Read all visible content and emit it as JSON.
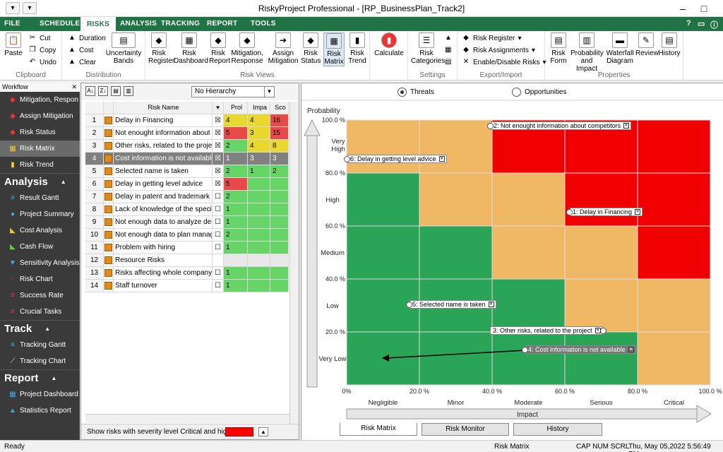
{
  "window": {
    "title": "RiskyProject Professional - [RP_BusinessPlan_Track2]"
  },
  "ribbon_tabs": [
    {
      "label": "FILE"
    },
    {
      "label": "SCHEDULE"
    },
    {
      "label": "RISKS"
    },
    {
      "label": "ANALYSIS"
    },
    {
      "label": "TRACKING"
    },
    {
      "label": "REPORT"
    },
    {
      "label": "TOOLS"
    }
  ],
  "ribbon": {
    "clipboard": {
      "paste": "Paste",
      "cut": "Cut",
      "copy": "Copy",
      "undo": "Undo",
      "label": "Clipboard"
    },
    "distribution": {
      "duration": "Duration",
      "cost": "Cost",
      "clear": "Clear",
      "bands": "Uncertainty Bands",
      "label": "Distribution"
    },
    "risk_views": {
      "label": "Risk Views",
      "buttons": [
        {
          "label": "Risk Register"
        },
        {
          "label": "Risk Dashboard"
        },
        {
          "label": "Risk Report"
        },
        {
          "label": "Mitigation, Response"
        },
        {
          "label": "Assign Mitigation"
        },
        {
          "label": "Risk Status"
        },
        {
          "label": "Risk Matrix"
        },
        {
          "label": "Risk Trend"
        }
      ]
    },
    "calculate": "Calculate",
    "settings": {
      "categories": "Risk Categories",
      "label": "Settings"
    },
    "export_import": {
      "label": "Export/Import",
      "risk_register": "Risk Register",
      "risk_assignments": "Risk Assignments",
      "enable_disable": "Enable/Disable Risks"
    },
    "properties": {
      "label": "Properties",
      "buttons": [
        {
          "label": "Risk Form"
        },
        {
          "label": "Probability and Impact"
        },
        {
          "label": "Waterfall Diagram"
        },
        {
          "label": "Review"
        },
        {
          "label": "History"
        }
      ]
    }
  },
  "sidebar": {
    "header": "Workflow",
    "workflow_items": [
      {
        "label": "Mitigation, Respon"
      },
      {
        "label": "Assign Mitigation"
      },
      {
        "label": "Risk Status"
      },
      {
        "label": "Risk Matrix"
      },
      {
        "label": "Risk Trend"
      }
    ],
    "sections": [
      {
        "title": "Analysis",
        "items": [
          {
            "label": "Result Gantt"
          },
          {
            "label": "Project Summary"
          },
          {
            "label": "Cost Analysis"
          },
          {
            "label": "Cash Flow"
          },
          {
            "label": "Sensitivity Analysis"
          },
          {
            "label": "Risk Chart"
          },
          {
            "label": "Success Rate"
          },
          {
            "label": "Crucial Tasks"
          }
        ]
      },
      {
        "title": "Track",
        "items": [
          {
            "label": "Tracking Gantt"
          },
          {
            "label": "Tracking Chart"
          }
        ]
      },
      {
        "title": "Report",
        "items": [
          {
            "label": "Project Dashboard"
          },
          {
            "label": "Statistics Report"
          }
        ]
      }
    ]
  },
  "risk_list": {
    "hierarchy": "No Hierarchy",
    "columns": {
      "name": "Risk Name",
      "prob": "Prol",
      "impact": "Impa",
      "score": "Sco"
    },
    "rows": [
      {
        "n": "1",
        "name": "Delay in Financing",
        "prob": "4",
        "impact": "4",
        "score": "16",
        "pc": "#e8d830",
        "ic": "#e8d830",
        "sc": "#e84a4a",
        "checked": true
      },
      {
        "n": "2",
        "name": "Not enought information about com",
        "prob": "5",
        "impact": "3",
        "score": "15",
        "pc": "#e84a4a",
        "ic": "#e8d830",
        "sc": "#e84a4a",
        "checked": true
      },
      {
        "n": "3",
        "name": "Other risks, related to the project",
        "prob": "2",
        "impact": "4",
        "score": "8",
        "pc": "#66d466",
        "ic": "#e8d830",
        "sc": "#e8d830",
        "checked": true
      },
      {
        "n": "4",
        "name": "Cost information is not available",
        "prob": "1",
        "impact": "3",
        "score": "3",
        "pc": "#808080",
        "ic": "#808080",
        "sc": "#808080",
        "checked": true
      },
      {
        "n": "5",
        "name": "Selected name is taken",
        "prob": "2",
        "impact": "1",
        "score": "2",
        "pc": "#66d466",
        "ic": "#66d466",
        "sc": "#66d466",
        "checked": true
      },
      {
        "n": "6",
        "name": "Delay in getting level advice",
        "prob": "5",
        "impact": "",
        "score": "",
        "pc": "#e84a4a",
        "ic": "#66d466",
        "sc": "#66d466",
        "checked": true
      },
      {
        "n": "7",
        "name": "Delay in patent and trademark sea",
        "prob": "2",
        "impact": "",
        "score": "",
        "pc": "#66d466",
        "ic": "#66d466",
        "sc": "#66d466",
        "checked": false
      },
      {
        "n": "8",
        "name": "Lack of knowledge of the specific",
        "prob": "1",
        "impact": "",
        "score": "",
        "pc": "#66d466",
        "ic": "#66d466",
        "sc": "#66d466",
        "checked": false
      },
      {
        "n": "9",
        "name": "Not enough data to analyze demar",
        "prob": "1",
        "impact": "",
        "score": "",
        "pc": "#66d466",
        "ic": "#66d466",
        "sc": "#66d466",
        "checked": false
      },
      {
        "n": "10",
        "name": "Not enough data to plan managem",
        "prob": "2",
        "impact": "",
        "score": "",
        "pc": "#66d466",
        "ic": "#66d466",
        "sc": "#66d466",
        "checked": false
      },
      {
        "n": "11",
        "name": "Problem with hiring",
        "prob": "1",
        "impact": "",
        "score": "",
        "pc": "#66d466",
        "ic": "#66d466",
        "sc": "#66d466",
        "checked": false
      },
      {
        "n": "12",
        "name": "Resource Risks",
        "prob": "",
        "impact": "",
        "score": "",
        "pc": "#e8e8e8",
        "ic": "#e8e8e8",
        "sc": "#e8e8e8",
        "checked": null
      },
      {
        "n": "13",
        "name": "Risks affecting whole company/div",
        "prob": "1",
        "impact": "",
        "score": "",
        "pc": "#66d466",
        "ic": "#66d466",
        "sc": "#66d466",
        "checked": false
      },
      {
        "n": "14",
        "name": "Staff turnover",
        "prob": "1",
        "impact": "",
        "score": "",
        "pc": "#66d466",
        "ic": "#66d466",
        "sc": "#66d466",
        "checked": false
      }
    ],
    "footer": "Show risks with severity level Critical and higher"
  },
  "matrix": {
    "threats": "Threats",
    "opportunities": "Opportunities",
    "y_title": "Probability",
    "x_title": "Impact",
    "y_ticks": [
      "100.0 %",
      "80.0 %",
      "60.0 %",
      "40.0 %",
      "20.0 %"
    ],
    "x_ticks": [
      "0%",
      "20.0 %",
      "40.0 %",
      "60.0 %",
      "80.0 %",
      "100.0 %"
    ],
    "row_labels": [
      "Very High",
      "High",
      "Medium",
      "Low",
      "Very Low"
    ],
    "col_labels": [
      "Negligible",
      "Minor",
      "Moderate",
      "Serious",
      "Critical"
    ],
    "cell_colors": [
      [
        "#f0b765",
        "#f0b765",
        "#f00000",
        "#f00000",
        "#f00000"
      ],
      [
        "#2aa557",
        "#f0b765",
        "#f0b765",
        "#f00000",
        "#f00000"
      ],
      [
        "#2aa557",
        "#2aa557",
        "#f0b765",
        "#f0b765",
        "#f00000"
      ],
      [
        "#2aa557",
        "#2aa557",
        "#2aa557",
        "#f0b765",
        "#f0b765"
      ],
      [
        "#2aa557",
        "#2aa557",
        "#2aa557",
        "#2aa557",
        "#f0b765"
      ]
    ],
    "risk_labels": [
      "2: Not enought information about competitors",
      "6: Delay in getting level advice",
      "1: Delay in Financing",
      "5: Selected name is taken",
      "3: Other risks, related to the project",
      "4: Cost information is not available"
    ],
    "tabs": [
      "Risk Matrix",
      "Risk Monitor",
      "History"
    ]
  },
  "status": {
    "left": "Ready",
    "view": "Risk Matrix",
    "indicators": "CAP  NUM  SCRL",
    "datetime": "Thu, May 05,2022  5:56:49 PM"
  }
}
